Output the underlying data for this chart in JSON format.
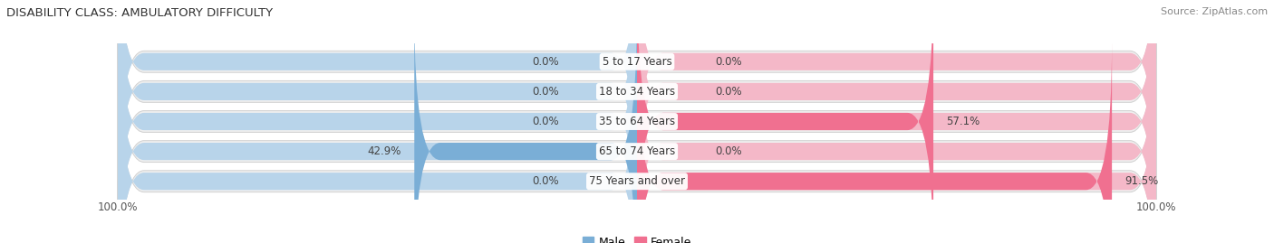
{
  "title": "DISABILITY CLASS: AMBULATORY DIFFICULTY",
  "source": "Source: ZipAtlas.com",
  "categories": [
    "5 to 17 Years",
    "18 to 34 Years",
    "35 to 64 Years",
    "65 to 74 Years",
    "75 Years and over"
  ],
  "male_values": [
    0.0,
    0.0,
    0.0,
    42.9,
    0.0
  ],
  "female_values": [
    0.0,
    0.0,
    57.1,
    0.0,
    91.5
  ],
  "male_color": "#7aaed6",
  "female_color": "#f07090",
  "male_light": "#b8d4ea",
  "female_light": "#f4b8c8",
  "bar_bg_color": "#efefef",
  "bar_outline_color": "#d0d0d0",
  "axis_max": 100.0,
  "title_fontsize": 9.5,
  "label_fontsize": 8.5,
  "tick_fontsize": 8.5,
  "source_fontsize": 8,
  "legend_fontsize": 9
}
